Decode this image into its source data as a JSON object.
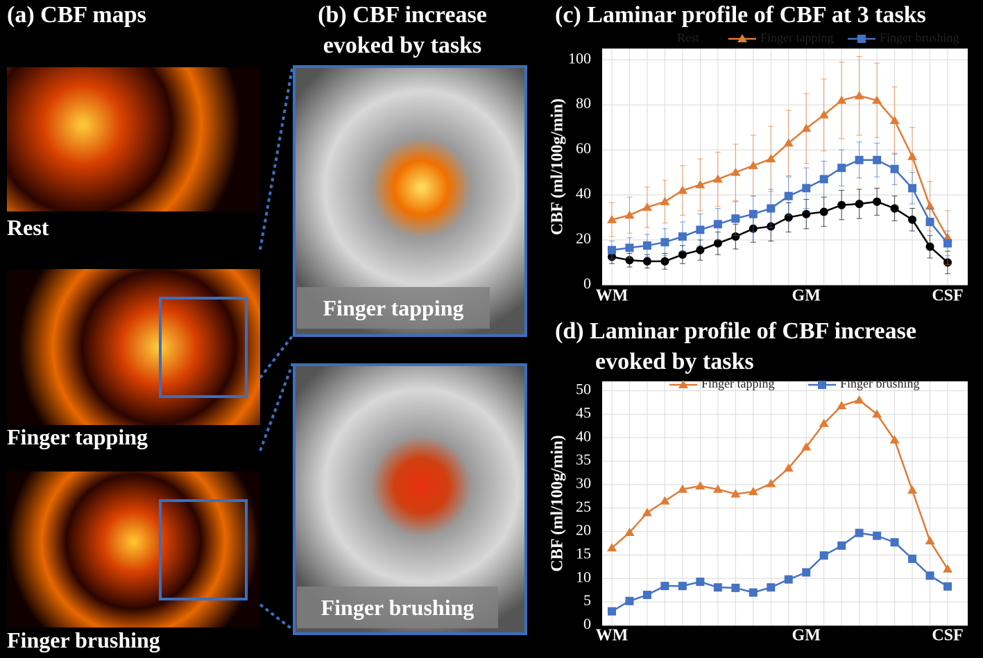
{
  "panels": [
    {
      "title": "(a) CBF maps",
      "labels": [
        "Rest",
        "Finger tapping",
        "Finger brushing"
      ]
    },
    {
      "title": "(b) CBF increase evoked by tasks",
      "labels": [
        "Finger tapping",
        "Finger brushing"
      ]
    }
  ],
  "chart_data": [
    {
      "type": "line",
      "title": "(c) Laminar profile of CBF at 3 tasks",
      "y_label": "CBF (ml/100g/min)",
      "categories": [
        "WM",
        null,
        null,
        null,
        null,
        null,
        null,
        null,
        null,
        null,
        null,
        "GM",
        null,
        null,
        null,
        null,
        null,
        null,
        null,
        "CSF"
      ],
      "ylim": [
        0,
        105
      ],
      "yticks": [
        0,
        20,
        40,
        60,
        80,
        100
      ],
      "grid": true,
      "series": [
        {
          "name": "Rest",
          "color": "#000000",
          "marker": "circle",
          "values": [
            12.5,
            11,
            10.5,
            10.5,
            13.5,
            15.5,
            18.5,
            21.5,
            25,
            26,
            30,
            31.5,
            32.5,
            35.5,
            36,
            37,
            34,
            29,
            17,
            10
          ],
          "errors": [
            3,
            3,
            3,
            3.5,
            4,
            4.5,
            5,
            5.5,
            6,
            6.5,
            6.5,
            6.5,
            6.5,
            6.5,
            6.5,
            6,
            5.5,
            5,
            5,
            5
          ]
        },
        {
          "name": "Finger tapping",
          "color": "#e07b35",
          "marker": "triangle",
          "values": [
            29,
            31,
            34.5,
            37,
            42,
            44.5,
            47,
            50,
            53,
            56,
            63,
            69.5,
            75.5,
            82,
            84,
            82,
            73,
            57,
            35,
            21
          ],
          "errors": [
            7.5,
            8,
            9,
            9.5,
            11,
            11.5,
            12,
            12.5,
            13.5,
            14.5,
            14.5,
            15.5,
            16,
            17,
            17.5,
            16.5,
            15,
            13,
            11,
            12
          ]
        },
        {
          "name": "Finger brushing",
          "color": "#4472c4",
          "marker": "square",
          "values": [
            15.5,
            16.5,
            17.5,
            19,
            21.5,
            24.5,
            27,
            29.5,
            31.5,
            34,
            39.5,
            43,
            47,
            52,
            55.5,
            55.5,
            51.5,
            43,
            28,
            18.5
          ],
          "errors": [
            4,
            4.5,
            5,
            6,
            6.5,
            7,
            7,
            7.5,
            8,
            8.5,
            8.5,
            9,
            8,
            8,
            8,
            7.5,
            7,
            7,
            6,
            5.5
          ]
        }
      ]
    },
    {
      "type": "line",
      "title": "(d) Laminar profile of CBF increase evoked by tasks",
      "y_label": "CBF (ml/100g/min)",
      "categories": [
        "WM",
        null,
        null,
        null,
        null,
        null,
        null,
        null,
        null,
        null,
        null,
        "GM",
        null,
        null,
        null,
        null,
        null,
        null,
        null,
        "CSF"
      ],
      "ylim": [
        0,
        52
      ],
      "yticks": [
        0,
        5,
        10,
        15,
        20,
        25,
        30,
        35,
        40,
        45,
        50
      ],
      "grid": true,
      "series": [
        {
          "name": "Finger tapping",
          "color": "#e07b35",
          "marker": "triangle",
          "values": [
            16.5,
            19.8,
            24,
            26.5,
            29,
            29.7,
            29,
            28,
            28.5,
            30.2,
            33.5,
            38,
            43,
            46.8,
            48,
            45,
            39.5,
            28.8,
            18,
            12
          ]
        },
        {
          "name": "Finger brushing",
          "color": "#4472c4",
          "marker": "square",
          "values": [
            3,
            5.2,
            6.5,
            8.4,
            8.4,
            9.3,
            8.1,
            8,
            7,
            8.1,
            9.8,
            11.3,
            14.9,
            17,
            19.7,
            19.1,
            17.7,
            14.2,
            10.6,
            8.3
          ]
        }
      ]
    }
  ]
}
